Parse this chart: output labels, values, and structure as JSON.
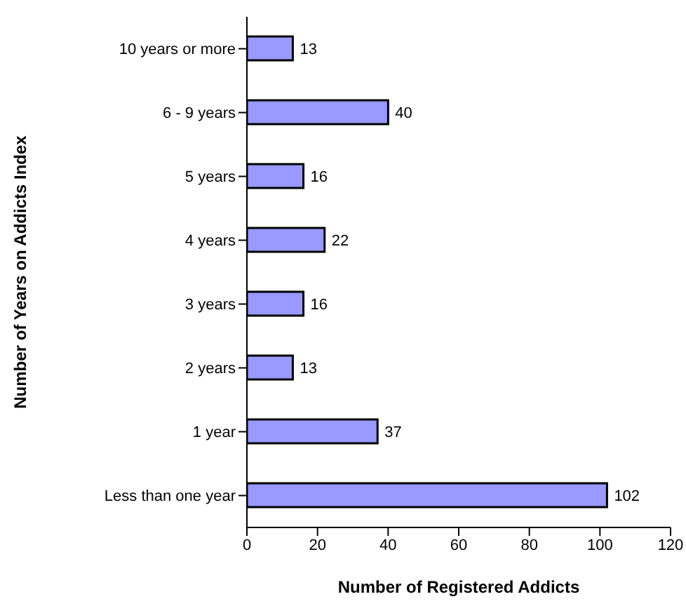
{
  "chart_data": {
    "type": "bar",
    "orientation": "horizontal",
    "xlabel": "Number of Registered Addicts",
    "ylabel": "Number of Years on Addicts Index",
    "categories": [
      "10 years or more",
      "6 - 9 years",
      "5 years",
      "4 years",
      "3 years",
      "2 years",
      "1 year",
      "Less than one year"
    ],
    "values": [
      13,
      40,
      16,
      22,
      16,
      13,
      37,
      102
    ],
    "color": "#9999ff",
    "xlim": [
      0,
      120
    ],
    "xticks": [
      0,
      20,
      40,
      60,
      80,
      100,
      120
    ],
    "grid": false,
    "data_labels": true,
    "legend": false
  }
}
